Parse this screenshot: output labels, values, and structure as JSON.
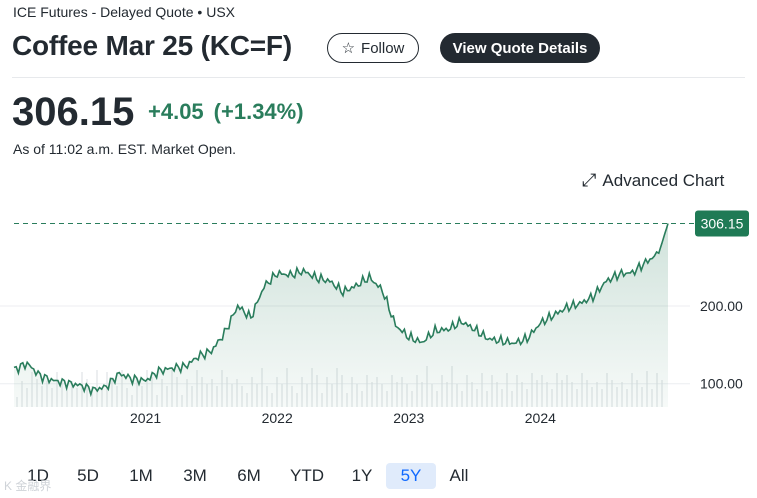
{
  "header": {
    "exchange": "ICE Futures - Delayed Quote • USX",
    "title": "Coffee Mar 25 (KC=F)",
    "follow_label": "Follow",
    "view_quote_label": "View Quote Details"
  },
  "quote": {
    "price": "306.15",
    "change": "+4.05",
    "change_pct": "(+1.34%)",
    "as_of": "As of 11:02 a.m. EST. Market Open."
  },
  "advanced_chart_label": "Advanced Chart",
  "ranges": [
    "1D",
    "5D",
    "1M",
    "3M",
    "6M",
    "YTD",
    "1Y",
    "5Y",
    "All"
  ],
  "selected_range": "5Y",
  "watermark": "K 金融界",
  "colors": {
    "accent": "#2a7d5c",
    "up": "#2a7d5c",
    "selected_range": "#0f69ff"
  },
  "chart_data": {
    "type": "area",
    "x_tick_labels": [
      "2021",
      "2022",
      "2023",
      "2024"
    ],
    "y_tick_labels": [
      "100.00",
      "200.00"
    ],
    "current_value_label": "306.15",
    "ylim": [
      70,
      330
    ],
    "reference_line": 306.15,
    "grid": true,
    "series": [
      {
        "x": [
          2020.0,
          2020.1,
          2020.2,
          2020.3,
          2020.4,
          2020.5,
          2020.6,
          2020.7,
          2020.8,
          2020.9,
          2021.0,
          2021.1,
          2021.2,
          2021.3,
          2021.4,
          2021.5,
          2021.6,
          2021.7,
          2021.8,
          2021.9,
          2022.0,
          2022.1,
          2022.2,
          2022.3,
          2022.4,
          2022.5,
          2022.6,
          2022.7,
          2022.8,
          2022.9,
          2023.0,
          2023.1,
          2023.2,
          2023.3,
          2023.4,
          2023.5,
          2023.6,
          2023.7,
          2023.8,
          2023.9,
          2024.0,
          2024.1,
          2024.2,
          2024.3,
          2024.4,
          2024.5,
          2024.6,
          2024.7,
          2024.8,
          2024.9,
          2024.97
        ],
        "values": [
          118,
          126,
          110,
          104,
          101,
          98,
          92,
          96,
          113,
          106,
          104,
          116,
          120,
          122,
          135,
          142,
          165,
          200,
          185,
          225,
          242,
          240,
          245,
          236,
          232,
          218,
          226,
          237,
          220,
          175,
          160,
          153,
          168,
          170,
          180,
          170,
          158,
          155,
          152,
          158,
          178,
          188,
          198,
          203,
          212,
          232,
          241,
          243,
          256,
          268,
          306.15
        ]
      }
    ]
  }
}
